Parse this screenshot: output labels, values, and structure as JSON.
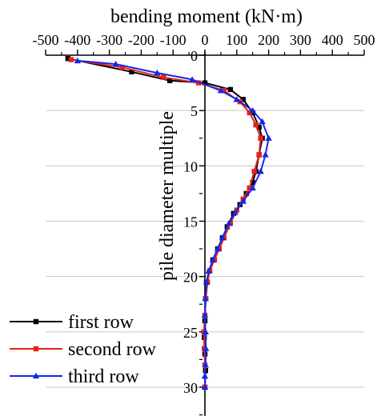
{
  "chart_data": {
    "type": "line",
    "xlabel": "bending moment (kN·m)",
    "ylabel": "pile diameter multiple",
    "xlim": [
      -500,
      500
    ],
    "ylim": [
      0,
      30
    ],
    "y_inverted": true,
    "x_axis_position": "top",
    "x_ticks": [
      "-500",
      "-400",
      "-300",
      "-200",
      "-100",
      "0",
      "100",
      "200",
      "300",
      "400",
      "500"
    ],
    "y_ticks": [
      "0",
      "5",
      "10",
      "15",
      "20",
      "25",
      "30"
    ],
    "grid": "horizontal",
    "legend_position": "bottom-left",
    "series": [
      {
        "name": "first row",
        "color": "#000000",
        "marker": "square",
        "points": [
          [
            -430,
            0.3
          ],
          [
            -230,
            1.5
          ],
          [
            -110,
            2.3
          ],
          [
            0,
            2.5
          ],
          [
            80,
            3.1
          ],
          [
            120,
            4.0
          ],
          [
            150,
            5.2
          ],
          [
            170,
            6.5
          ],
          [
            180,
            7.5
          ],
          [
            170,
            9.0
          ],
          [
            160,
            10.5
          ],
          [
            150,
            11.5
          ],
          [
            130,
            12.5
          ],
          [
            110,
            13.5
          ],
          [
            90,
            14.3
          ],
          [
            70,
            15.5
          ],
          [
            55,
            16.5
          ],
          [
            40,
            17.5
          ],
          [
            25,
            18.5
          ],
          [
            15,
            19.5
          ],
          [
            5,
            20.5
          ],
          [
            2,
            22
          ],
          [
            0,
            24
          ],
          [
            -2,
            25.5
          ],
          [
            0,
            27
          ],
          [
            2,
            28.5
          ],
          [
            0,
            30
          ]
        ]
      },
      {
        "name": "second row",
        "color": "#e8201c",
        "marker": "square",
        "points": [
          [
            -420,
            0.4
          ],
          [
            -260,
            1.1
          ],
          [
            -130,
            2.0
          ],
          [
            -20,
            2.5
          ],
          [
            60,
            3.2
          ],
          [
            110,
            4.2
          ],
          [
            140,
            5.2
          ],
          [
            160,
            6.3
          ],
          [
            175,
            7.5
          ],
          [
            170,
            9.0
          ],
          [
            155,
            10.5
          ],
          [
            140,
            12.0
          ],
          [
            120,
            13.0
          ],
          [
            100,
            14.0
          ],
          [
            80,
            15.2
          ],
          [
            60,
            16.5
          ],
          [
            45,
            17.5
          ],
          [
            30,
            18.5
          ],
          [
            15,
            19.5
          ],
          [
            8,
            20.5
          ],
          [
            3,
            22
          ],
          [
            0,
            23.5
          ],
          [
            -3,
            25
          ],
          [
            -2,
            26.5
          ],
          [
            0,
            28
          ],
          [
            0,
            30
          ]
        ]
      },
      {
        "name": "third row",
        "color": "#1428e8",
        "marker": "triangle",
        "points": [
          [
            -400,
            0.5
          ],
          [
            -280,
            0.8
          ],
          [
            -150,
            1.6
          ],
          [
            -40,
            2.2
          ],
          [
            50,
            3.2
          ],
          [
            100,
            4.0
          ],
          [
            150,
            5.0
          ],
          [
            180,
            6.0
          ],
          [
            200,
            7.5
          ],
          [
            190,
            9.0
          ],
          [
            175,
            10.5
          ],
          [
            150,
            12.0
          ],
          [
            120,
            13.2
          ],
          [
            95,
            14.2
          ],
          [
            75,
            15.2
          ],
          [
            55,
            16.5
          ],
          [
            40,
            17.5
          ],
          [
            25,
            18.5
          ],
          [
            12,
            19.5
          ],
          [
            5,
            20.5
          ],
          [
            2,
            22
          ],
          [
            0,
            23.5
          ],
          [
            2,
            25
          ],
          [
            3,
            26.5
          ],
          [
            2,
            28
          ],
          [
            0,
            29
          ],
          [
            0,
            30
          ]
        ]
      }
    ]
  }
}
